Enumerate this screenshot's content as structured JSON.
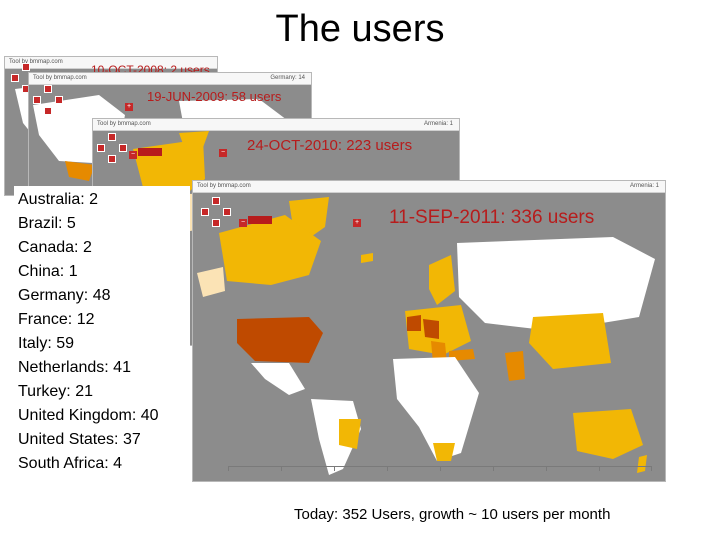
{
  "title": "The users",
  "snapshots": [
    {
      "label": "10-OCT-2008: 2 users",
      "toolbar": "Tool by bmmap.com",
      "info": ""
    },
    {
      "label": "19-JUN-2009: 58 users",
      "toolbar": "Tool by bmmap.com",
      "info": "Germany: 14"
    },
    {
      "label": "24-OCT-2010: 223 users",
      "toolbar": "Tool by bmmap.com",
      "info": "Armenia: 1"
    },
    {
      "label": "11-SEP-2011: 336 users",
      "toolbar": "Tool by bmmap.com",
      "info": "Armenia: 1"
    }
  ],
  "country_counts": [
    "Australia: 2",
    "Brazil: 5",
    "Canada: 2",
    "China: 1",
    "Germany: 48",
    "France: 12",
    "Italy: 59",
    "Netherlands: 41",
    "Turkey: 21",
    "United Kingdom: 40",
    "United States: 37",
    "South Africa: 4"
  ],
  "footer": "Today: 352 Users, growth ~ 10 users per month",
  "colors": {
    "stamp": "#b71c1c",
    "ocean": "#8c8c8c",
    "land_none": "#ffffff",
    "low": "#f2b705",
    "mid": "#e68a00",
    "high": "#bf4a00",
    "pale": "#fbe3b5"
  }
}
